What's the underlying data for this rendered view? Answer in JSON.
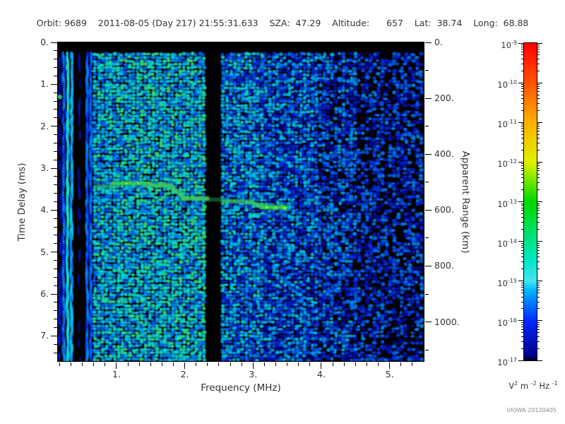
{
  "header": {
    "text": "Orbit: 9689    2011-08-05 (Day 217) 21:55:31.633    SZA:  47.29    Altitude:      657    Lat:  38.74    Long:  68.88",
    "orbit": "9689",
    "date": "2011-08-05",
    "day_of_year": "217",
    "time_utc": "21:55:31.633",
    "sza_deg": "47.29",
    "altitude_km": "657",
    "latitude_deg": "38.74",
    "longitude_deg": "68.88"
  },
  "watermark": "UIOWA 20120405",
  "chart_data": {
    "type": "heatmap",
    "title": "Orbit: 9689  2011-08-05 (Day 217) 21:55:31.633  SZA: 47.29  Altitude: 657  Lat: 38.74  Long: 68.88",
    "x_axis": {
      "label": "Frequency (MHz)",
      "range_mhz": [
        0.142,
        5.5
      ],
      "major_ticks": [
        {
          "v": 1,
          "label": "1."
        },
        {
          "v": 2,
          "label": "2."
        },
        {
          "v": 3,
          "label": "3."
        },
        {
          "v": 4,
          "label": "4."
        },
        {
          "v": 5,
          "label": "5."
        }
      ],
      "minor_step_mhz": 0.16667
    },
    "y_axis_left": {
      "label": "Time Delay (ms)",
      "range_ms": [
        0,
        7.6
      ],
      "major_ticks": [
        {
          "v": 0,
          "label": "0."
        },
        {
          "v": 1,
          "label": "1."
        },
        {
          "v": 2,
          "label": "2."
        },
        {
          "v": 3,
          "label": "3."
        },
        {
          "v": 4,
          "label": "4."
        },
        {
          "v": 5,
          "label": "5."
        },
        {
          "v": 6,
          "label": "6."
        },
        {
          "v": 7,
          "label": "7."
        }
      ],
      "minor_step_ms": 0.2
    },
    "y_axis_right": {
      "label": "Apparent Range (km)",
      "km_per_ms": 150,
      "major_ticks": [
        {
          "v": 0,
          "label": "0."
        },
        {
          "v": 200,
          "label": "200."
        },
        {
          "v": 400,
          "label": "400."
        },
        {
          "v": 600,
          "label": "600."
        },
        {
          "v": 800,
          "label": "800."
        },
        {
          "v": 1000,
          "label": "1000."
        }
      ],
      "minor_step_km": 100,
      "max_km": 1100
    },
    "colorbar": {
      "scale": "log",
      "decade_exponents": [
        -9,
        -10,
        -11,
        -12,
        -13,
        -14,
        -15,
        -16,
        -17
      ],
      "units_segments": [
        [
          "V",
          "2"
        ],
        [
          " m ",
          "-2"
        ],
        [
          " Hz ",
          "-1"
        ]
      ],
      "gradient_stops_bottom_to_top": [
        {
          "p": 0.0,
          "c": "#000000"
        },
        {
          "p": 0.012,
          "c": "#000088"
        },
        {
          "p": 0.125,
          "c": "#0028ff"
        },
        {
          "p": 0.22,
          "c": "#00b4ff"
        },
        {
          "p": 0.25,
          "c": "#44e4f4"
        },
        {
          "p": 0.32,
          "c": "#00e8c0"
        },
        {
          "p": 0.375,
          "c": "#00e488"
        },
        {
          "p": 0.5,
          "c": "#00d800"
        },
        {
          "p": 0.57,
          "c": "#7ce800"
        },
        {
          "p": 0.625,
          "c": "#e0f000"
        },
        {
          "p": 0.75,
          "c": "#ffb000"
        },
        {
          "p": 0.875,
          "c": "#ff5200"
        },
        {
          "p": 1.0,
          "c": "#ff0000"
        }
      ]
    },
    "spectrogram": {
      "seed": 1234,
      "background": "#000000",
      "top_black_band_ms": [
        0,
        0.22
      ],
      "black_gap_mhz": [
        2.33,
        2.52
      ],
      "noise_colormap": [
        [
          0.085,
          "#000078"
        ],
        [
          0.18,
          "#0020e8"
        ],
        [
          0.28,
          "#0064ff"
        ],
        [
          0.38,
          "#00aaff"
        ],
        [
          0.46,
          "#00d8f8"
        ],
        [
          0.54,
          "#10ecd0"
        ],
        [
          0.62,
          "#38e88c"
        ],
        [
          0.7,
          "#50e055"
        ]
      ],
      "noise_regions": [
        {
          "f": [
            0.142,
            0.21
          ],
          "mean": 0.3,
          "streak": true
        },
        {
          "f": [
            0.21,
            0.27
          ],
          "mean": 0.17,
          "streak": true
        },
        {
          "f": [
            0.27,
            0.33
          ],
          "mean": 0.27,
          "streak": true
        },
        {
          "f": [
            0.33,
            0.4
          ],
          "mean": 0.15,
          "streak": true
        },
        {
          "f": [
            0.4,
            0.47
          ],
          "mean": 0.24,
          "streak": true
        },
        {
          "f": [
            0.47,
            0.57
          ],
          "mean": 0.12,
          "streak": true
        },
        {
          "f": [
            0.57,
            0.66
          ],
          "mean": 0.3,
          "streak": true
        },
        {
          "f": [
            0.66,
            1.05
          ],
          "mean": 0.42,
          "streak": false
        },
        {
          "f": [
            1.05,
            2.33
          ],
          "mean": 0.45,
          "streak": false
        },
        {
          "f": [
            2.33,
            2.52
          ],
          "mean": 0.0,
          "streak": false
        },
        {
          "f": [
            2.52,
            3.15
          ],
          "mean": 0.34,
          "streak": false
        },
        {
          "f": [
            3.15,
            3.95
          ],
          "mean": 0.28,
          "streak": false
        },
        {
          "f": [
            3.95,
            4.55
          ],
          "mean": 0.22,
          "streak": false
        },
        {
          "f": [
            4.55,
            5.5
          ],
          "mean": 0.16,
          "streak": false
        }
      ],
      "echo_trace": {
        "color": "#3cc95f",
        "bright_color": "#38e41e",
        "segments": [
          {
            "f": [
              0.7,
              0.95
            ],
            "t": [
              3.43,
              3.43
            ],
            "alpha": 0.45
          },
          {
            "f": [
              0.95,
              1.48
            ],
            "t": [
              3.36,
              3.36
            ],
            "alpha": 0.9
          },
          {
            "f": [
              1.48,
              1.8
            ],
            "t": [
              3.41,
              3.41
            ],
            "alpha": 0.9
          },
          {
            "f": [
              1.8,
              1.97
            ],
            "t": [
              3.44,
              3.68
            ],
            "alpha": 0.85
          },
          {
            "f": [
              1.97,
              2.33
            ],
            "t": [
              3.72,
              3.72
            ],
            "alpha": 0.9
          },
          {
            "f": [
              2.33,
              2.56
            ],
            "t": [
              3.75,
              3.75
            ],
            "alpha": 0.3
          },
          {
            "f": [
              2.56,
              2.98
            ],
            "t": [
              3.79,
              3.79
            ],
            "alpha": 0.7
          },
          {
            "f": [
              2.98,
              3.12
            ],
            "t": [
              3.82,
              3.9
            ],
            "alpha": 0.8
          },
          {
            "f": [
              3.12,
              3.48
            ],
            "t": [
              3.93,
              3.93
            ],
            "alpha": 0.95
          }
        ],
        "bright_spots": [
          {
            "f": 1.15,
            "t": 3.36,
            "r": 3.5
          },
          {
            "f": 1.32,
            "t": 3.36,
            "r": 3.2
          },
          {
            "f": 3.2,
            "t": 3.93,
            "r": 4.5
          },
          {
            "f": 3.33,
            "t": 3.94,
            "r": 4.5
          },
          {
            "f": 3.46,
            "t": 3.95,
            "r": 5.0
          }
        ]
      },
      "hot_spot": {
        "f": 0.168,
        "t": 1.3,
        "r": 4.5,
        "color": "#2ee06a"
      }
    }
  }
}
